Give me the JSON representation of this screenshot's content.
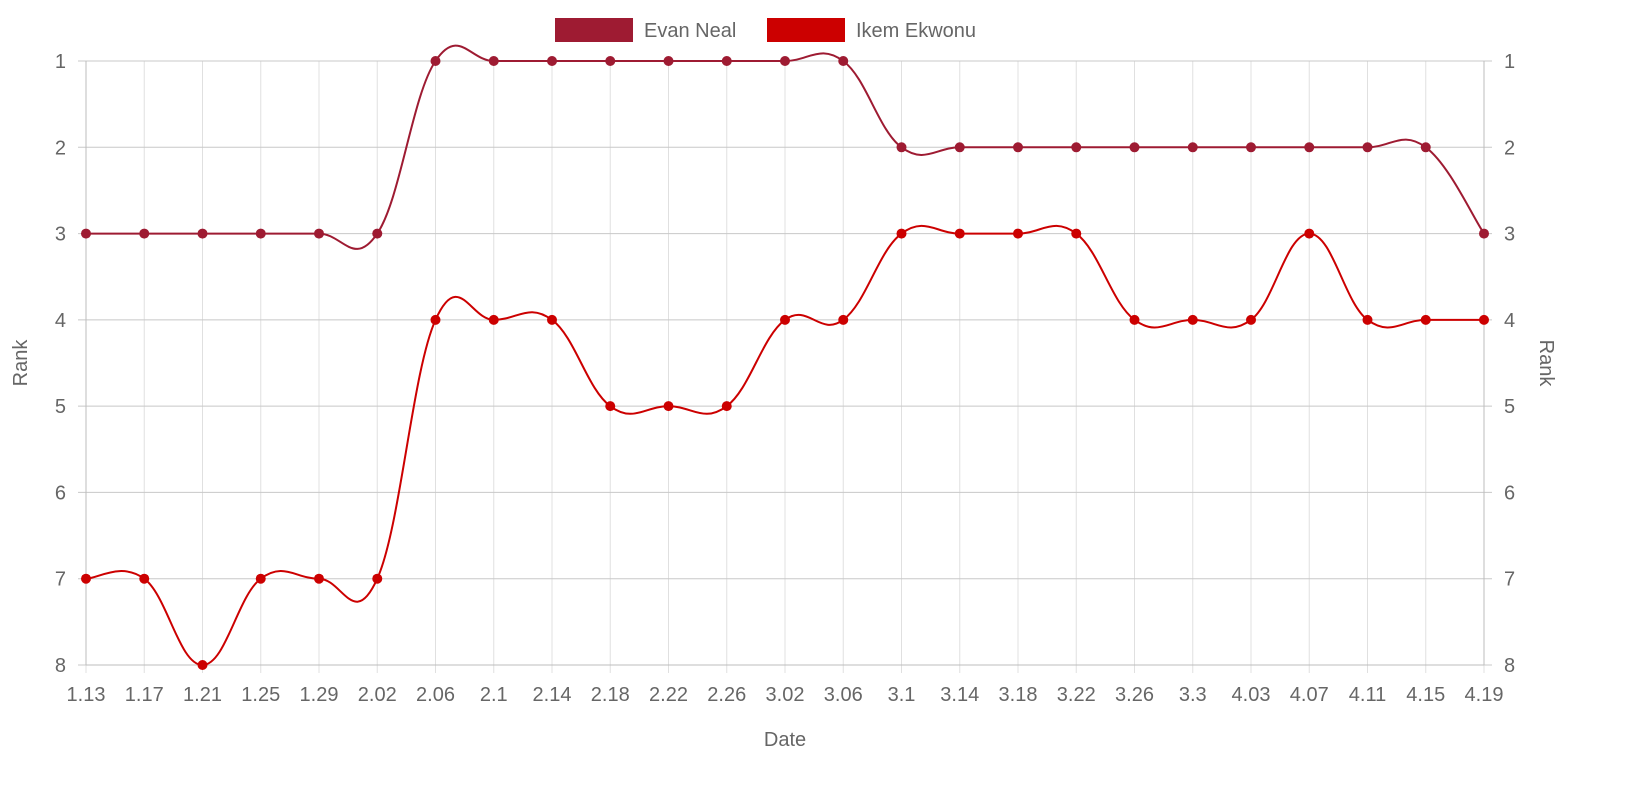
{
  "chart_data": {
    "type": "line",
    "title": "",
    "xlabel": "Date",
    "ylabel": "Rank",
    "ylabel_right": "Rank",
    "y_reversed": true,
    "ylim": [
      1,
      8
    ],
    "y_ticks": [
      "1",
      "2",
      "3",
      "4",
      "5",
      "6",
      "7",
      "8"
    ],
    "grid": true,
    "legend_position": "top-center",
    "categories": [
      "1.13",
      "1.17",
      "1.21",
      "1.25",
      "1.29",
      "2.02",
      "2.06",
      "2.1",
      "2.14",
      "2.18",
      "2.22",
      "2.26",
      "3.02",
      "3.06",
      "3.1",
      "3.14",
      "3.18",
      "3.22",
      "3.26",
      "3.3",
      "4.03",
      "4.07",
      "4.11",
      "4.15",
      "4.19"
    ],
    "series": [
      {
        "name": "Evan Neal",
        "color": "#9e1b32",
        "values": [
          3,
          3,
          3,
          3,
          3,
          3,
          1,
          1,
          1,
          1,
          1,
          1,
          1,
          1,
          2,
          2,
          2,
          2,
          2,
          2,
          2,
          2,
          2,
          2,
          3
        ]
      },
      {
        "name": "Ikem Ekwonu",
        "color": "#cc0000",
        "values": [
          7,
          7,
          8,
          7,
          7,
          7,
          4,
          4,
          4,
          5,
          5,
          5,
          4,
          4,
          3,
          3,
          3,
          3,
          4,
          4,
          4,
          3,
          4,
          4,
          4
        ]
      }
    ]
  }
}
